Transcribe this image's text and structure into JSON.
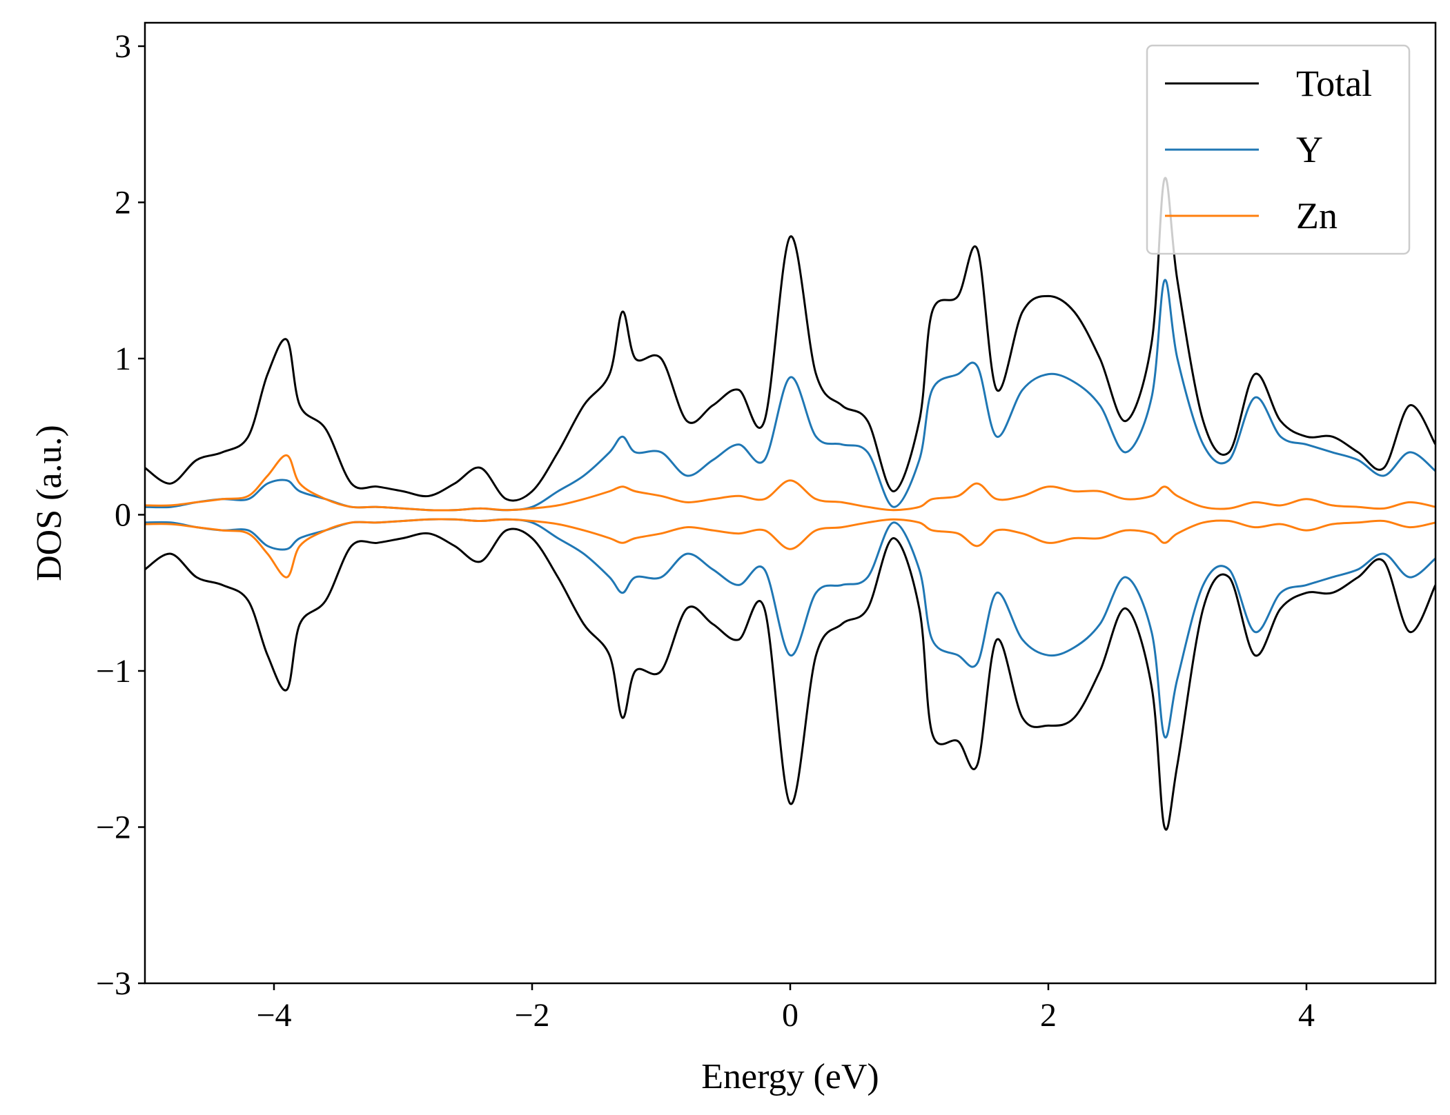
{
  "chart_data": {
    "type": "line",
    "title": "",
    "xlabel": "Energy (eV)",
    "ylabel": "DOS (a.u.)",
    "xlim": [
      -5,
      5
    ],
    "ylim": [
      -3,
      3.15
    ],
    "xticks": [
      -4,
      -2,
      0,
      2,
      4
    ],
    "xtick_labels": [
      "−4",
      "−2",
      "0",
      "2",
      "4"
    ],
    "yticks": [
      -3,
      -2,
      -1,
      0,
      1,
      2,
      3
    ],
    "ytick_labels": [
      "−3",
      "−2",
      "−1",
      "0",
      "1",
      "2",
      "3"
    ],
    "grid": false,
    "legend_position": "top-right",
    "x": [
      -5.0,
      -4.8,
      -4.6,
      -4.4,
      -4.2,
      -4.05,
      -3.9,
      -3.8,
      -3.6,
      -3.4,
      -3.2,
      -3.0,
      -2.8,
      -2.6,
      -2.4,
      -2.2,
      -2.0,
      -1.8,
      -1.6,
      -1.4,
      -1.3,
      -1.2,
      -1.0,
      -0.8,
      -0.6,
      -0.4,
      -0.2,
      0.0,
      0.2,
      0.4,
      0.6,
      0.8,
      1.0,
      1.1,
      1.3,
      1.45,
      1.6,
      1.8,
      2.0,
      2.2,
      2.4,
      2.6,
      2.8,
      2.9,
      3.0,
      3.2,
      3.4,
      3.6,
      3.8,
      4.0,
      4.2,
      4.4,
      4.6,
      4.8,
      5.0
    ],
    "series": [
      {
        "name": "Total",
        "color": "#000000",
        "up": [
          0.3,
          0.2,
          0.35,
          0.4,
          0.5,
          0.9,
          1.12,
          0.7,
          0.55,
          0.2,
          0.18,
          0.15,
          0.12,
          0.2,
          0.3,
          0.1,
          0.15,
          0.4,
          0.7,
          0.9,
          1.3,
          1.0,
          1.0,
          0.6,
          0.7,
          0.8,
          0.6,
          1.78,
          0.9,
          0.7,
          0.6,
          0.15,
          0.6,
          1.3,
          1.4,
          1.7,
          0.8,
          1.3,
          1.4,
          1.3,
          1.0,
          0.6,
          1.1,
          2.15,
          1.5,
          0.6,
          0.4,
          0.9,
          0.6,
          0.5,
          0.5,
          0.4,
          0.3,
          0.7,
          0.45
        ],
        "down": [
          -0.35,
          -0.25,
          -0.4,
          -0.45,
          -0.55,
          -0.9,
          -1.12,
          -0.7,
          -0.55,
          -0.2,
          -0.18,
          -0.15,
          -0.12,
          -0.2,
          -0.3,
          -0.1,
          -0.15,
          -0.4,
          -0.7,
          -0.9,
          -1.3,
          -1.0,
          -1.0,
          -0.6,
          -0.7,
          -0.8,
          -0.6,
          -1.85,
          -0.9,
          -0.7,
          -0.6,
          -0.15,
          -0.6,
          -1.4,
          -1.45,
          -1.6,
          -0.8,
          -1.3,
          -1.35,
          -1.3,
          -1.0,
          -0.6,
          -1.1,
          -2.0,
          -1.6,
          -0.6,
          -0.4,
          -0.9,
          -0.6,
          -0.5,
          -0.5,
          -0.4,
          -0.3,
          -0.75,
          -0.45
        ]
      },
      {
        "name": "Y",
        "color": "#1f77b4",
        "up": [
          0.05,
          0.05,
          0.08,
          0.1,
          0.1,
          0.2,
          0.22,
          0.15,
          0.1,
          0.05,
          0.05,
          0.04,
          0.03,
          0.03,
          0.04,
          0.03,
          0.05,
          0.15,
          0.25,
          0.4,
          0.5,
          0.4,
          0.4,
          0.25,
          0.35,
          0.45,
          0.35,
          0.88,
          0.5,
          0.45,
          0.4,
          0.05,
          0.35,
          0.8,
          0.9,
          0.95,
          0.5,
          0.8,
          0.9,
          0.85,
          0.7,
          0.4,
          0.75,
          1.5,
          1.0,
          0.45,
          0.35,
          0.75,
          0.5,
          0.45,
          0.4,
          0.35,
          0.25,
          0.4,
          0.28
        ],
        "down": [
          -0.05,
          -0.05,
          -0.08,
          -0.1,
          -0.1,
          -0.2,
          -0.22,
          -0.15,
          -0.1,
          -0.05,
          -0.05,
          -0.04,
          -0.03,
          -0.03,
          -0.04,
          -0.03,
          -0.05,
          -0.15,
          -0.25,
          -0.4,
          -0.5,
          -0.4,
          -0.4,
          -0.25,
          -0.35,
          -0.45,
          -0.35,
          -0.9,
          -0.5,
          -0.45,
          -0.4,
          -0.05,
          -0.35,
          -0.8,
          -0.9,
          -0.95,
          -0.5,
          -0.8,
          -0.9,
          -0.85,
          -0.7,
          -0.4,
          -0.75,
          -1.42,
          -1.05,
          -0.45,
          -0.35,
          -0.75,
          -0.5,
          -0.45,
          -0.4,
          -0.35,
          -0.25,
          -0.4,
          -0.28
        ]
      },
      {
        "name": "Zn",
        "color": "#ff7f0e",
        "up": [
          0.06,
          0.06,
          0.08,
          0.1,
          0.12,
          0.25,
          0.38,
          0.2,
          0.1,
          0.05,
          0.05,
          0.04,
          0.03,
          0.03,
          0.04,
          0.03,
          0.04,
          0.06,
          0.1,
          0.15,
          0.18,
          0.15,
          0.12,
          0.08,
          0.1,
          0.12,
          0.1,
          0.22,
          0.1,
          0.08,
          0.05,
          0.03,
          0.05,
          0.1,
          0.12,
          0.2,
          0.1,
          0.12,
          0.18,
          0.15,
          0.15,
          0.1,
          0.12,
          0.18,
          0.12,
          0.05,
          0.04,
          0.08,
          0.06,
          0.1,
          0.06,
          0.05,
          0.04,
          0.08,
          0.05
        ],
        "down": [
          -0.06,
          -0.06,
          -0.08,
          -0.1,
          -0.12,
          -0.25,
          -0.4,
          -0.2,
          -0.1,
          -0.05,
          -0.05,
          -0.04,
          -0.03,
          -0.03,
          -0.04,
          -0.03,
          -0.04,
          -0.06,
          -0.1,
          -0.15,
          -0.18,
          -0.15,
          -0.12,
          -0.08,
          -0.1,
          -0.12,
          -0.1,
          -0.22,
          -0.1,
          -0.08,
          -0.05,
          -0.03,
          -0.05,
          -0.1,
          -0.12,
          -0.2,
          -0.1,
          -0.12,
          -0.18,
          -0.15,
          -0.15,
          -0.1,
          -0.12,
          -0.18,
          -0.12,
          -0.05,
          -0.04,
          -0.08,
          -0.06,
          -0.1,
          -0.06,
          -0.05,
          -0.04,
          -0.08,
          -0.05
        ]
      }
    ]
  }
}
